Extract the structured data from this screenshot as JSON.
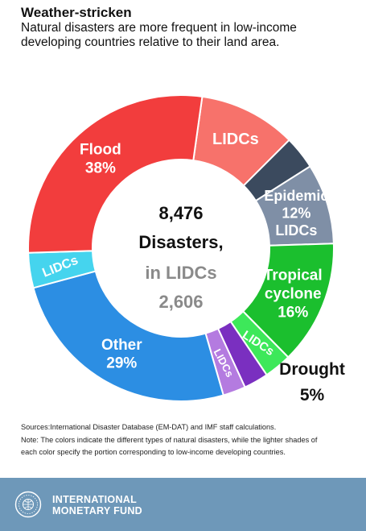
{
  "header": {
    "title": "Weather-stricken",
    "subtitle": "Natural disasters are more frequent in low-income developing countries relative to their land area."
  },
  "colors": {
    "flood": "#f23d3d",
    "flood_light": "#f7726b",
    "epidemic": "#3b4a5e",
    "epidemic_light": "#7f8fa6",
    "tropical": "#1bbf2e",
    "tropical_light": "#3de85a",
    "drought": "#7a2fc0",
    "drought_light": "#b47be0",
    "other": "#2c8ee3",
    "other_light": "#45d4ee"
  },
  "chart_data": {
    "type": "pie",
    "title": "",
    "center": {
      "total": "8,476",
      "total_label": "Disasters,",
      "lidc_label": "in LIDCs",
      "lidc_total": "2,606"
    },
    "slices": [
      {
        "key": "flood_lidc",
        "category": "Flood",
        "part": "LIDCs",
        "color": "#f7726b",
        "value": 10.3,
        "text": [
          "LIDCs"
        ]
      },
      {
        "key": "epidemic_other",
        "category": "Epidemic",
        "part": "other",
        "color": "#3b4a5e",
        "value": 3.5,
        "text": []
      },
      {
        "key": "epidemic_lidc",
        "category": "Epidemic",
        "part": "LIDCs",
        "color": "#7f8fa6",
        "value": 8.5,
        "text": [
          "Epidemic",
          "12%",
          "LIDCs"
        ]
      },
      {
        "key": "tropical_other",
        "category": "Tropical cyclone",
        "part": "other",
        "color": "#1bbf2e",
        "value": 13.1,
        "text": [
          "Tropical",
          "cyclone",
          "16%"
        ]
      },
      {
        "key": "tropical_lidc",
        "category": "Tropical cyclone",
        "part": "LIDCs",
        "color": "#3de85a",
        "value": 2.9,
        "text": [
          "LIDCs"
        ]
      },
      {
        "key": "drought_other",
        "category": "Drought",
        "part": "other",
        "color": "#7a2fc0",
        "value": 2.6,
        "text": []
      },
      {
        "key": "drought_lidc",
        "category": "Drought",
        "part": "LIDCs",
        "color": "#b47be0",
        "value": 2.4,
        "text": [
          "LIDCs"
        ]
      },
      {
        "key": "other_other",
        "category": "Other",
        "part": "other",
        "color": "#2c8ee3",
        "value": 25.3,
        "text": [
          "Other",
          "29%"
        ]
      },
      {
        "key": "other_lidc",
        "category": "Other",
        "part": "LIDCs",
        "color": "#45d4ee",
        "value": 3.7,
        "text": [
          "LIDCs"
        ]
      },
      {
        "key": "flood_other",
        "category": "Flood",
        "part": "other",
        "color": "#f23d3d",
        "value": 27.7,
        "text": [
          "Flood",
          "38%"
        ]
      }
    ],
    "outside_label": {
      "category": "Drought",
      "text": [
        "Drought",
        "5%"
      ]
    }
  },
  "notes": {
    "sources": "Sources:International Disaster Database (EM-DAT) and IMF staff calculations.",
    "note_line1": "Note: The colors indicate the different types of natural disasters, while the lighter shades of",
    "note_line2": "each color specify the portion corresponding to low-income developing countries."
  },
  "footer": {
    "org_line1": "INTERNATIONAL",
    "org_line2": "MONETARY FUND",
    "seal_icon": "imf-seal-icon"
  }
}
